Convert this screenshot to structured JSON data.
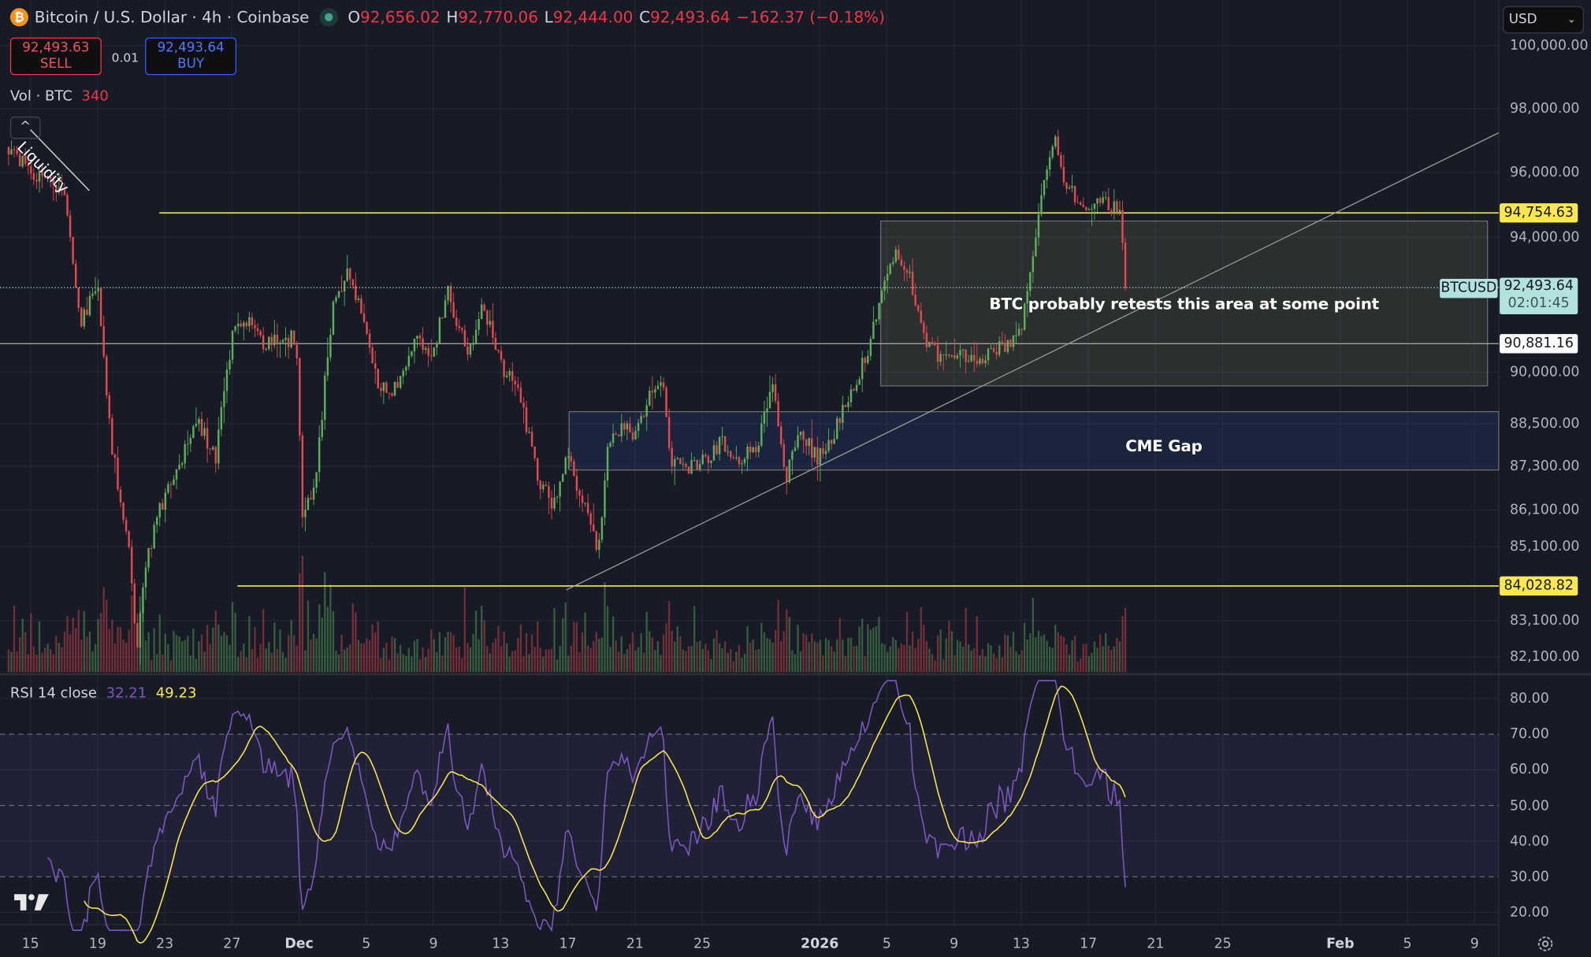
{
  "header": {
    "symbol": "Bitcoin / U.S. Dollar · 4h · Coinbase",
    "o_label": "O",
    "o": "92,656.02",
    "h_label": "H",
    "h": "92,770.06",
    "l_label": "L",
    "l": "92,444.00",
    "c_label": "C",
    "c": "92,493.64",
    "change": "−162.37 (−0.18%)",
    "coin_icon": "bitcoin-icon"
  },
  "trade": {
    "sell_price": "92,493.63",
    "sell_label": "SELL",
    "qty": "0.01",
    "buy_price": "92,493.64",
    "buy_label": "BUY"
  },
  "volume": {
    "label": "Vol · BTC",
    "value": "340"
  },
  "currency": {
    "value": "USD"
  },
  "price_axis": {
    "ticks": [
      "100,000.00",
      "98,000.00",
      "96,000.00",
      "94,000.00",
      "90,000.00",
      "88,500.00",
      "87,300.00",
      "86,100.00",
      "85,100.00",
      "83,100.00",
      "82,100.00"
    ]
  },
  "price_labels": {
    "resistance": "94,754.63",
    "current_symbol": "BTCUSD",
    "current_price": "92,493.64",
    "countdown": "02:01:45",
    "midline": "90,881.16",
    "support": "84,028.82"
  },
  "drawings": {
    "liquidity": "Liquidity",
    "retest_note": "BTC probably retests this area at some point",
    "cme_gap": "CME Gap"
  },
  "rsi": {
    "label": "RSI 14 close",
    "value": "32.21",
    "ma_value": "49.23",
    "ticks": [
      "80.00",
      "70.00",
      "60.00",
      "50.00",
      "40.00",
      "30.00",
      "20.00"
    ]
  },
  "time_axis": [
    "15",
    "19",
    "23",
    "27",
    "Dec",
    "5",
    "9",
    "13",
    "17",
    "21",
    "25",
    "2026",
    "5",
    "9",
    "13",
    "17",
    "21",
    "25",
    "Feb",
    "5",
    "9"
  ],
  "colors": {
    "up": "#5fae5a",
    "down": "#e5484f",
    "rsi": "#7e57c2",
    "rsi_ma": "#fce84c",
    "background": "#171b26",
    "hline": "#fce84c"
  },
  "chart_data": {
    "type": "candlestick",
    "timeframe": "4h",
    "x_origin": "Nov 15",
    "x_unit": "days since x_origin",
    "key_closes": [
      [
        -1.3,
        96800
      ],
      [
        0,
        96000
      ],
      [
        2,
        95500
      ],
      [
        3,
        91500
      ],
      [
        4,
        92500
      ],
      [
        4.8,
        88000
      ],
      [
        6,
        84500
      ],
      [
        6.3,
        82200
      ],
      [
        7,
        85000
      ],
      [
        8,
        86500
      ],
      [
        9,
        87500
      ],
      [
        10,
        88500
      ],
      [
        11,
        87500
      ],
      [
        12,
        91000
      ],
      [
        13,
        91500
      ],
      [
        14,
        90800
      ],
      [
        15.8,
        91000
      ],
      [
        16.2,
        86000
      ],
      [
        17,
        87000
      ],
      [
        18,
        92000
      ],
      [
        19,
        93000
      ],
      [
        20,
        91000
      ],
      [
        20.8,
        89500
      ],
      [
        21.8,
        89500
      ],
      [
        23,
        91000
      ],
      [
        24,
        90500
      ],
      [
        24.8,
        92500
      ],
      [
        26,
        90500
      ],
      [
        27,
        92000
      ],
      [
        28,
        90200
      ],
      [
        29,
        89500
      ],
      [
        30.2,
        87000
      ],
      [
        31.1,
        86200
      ],
      [
        32,
        87500
      ],
      [
        33.2,
        86000
      ],
      [
        33.8,
        84800
      ],
      [
        34.4,
        88000
      ],
      [
        35.3,
        88300
      ],
      [
        36,
        88200
      ],
      [
        37.1,
        89500
      ],
      [
        37.6,
        89800
      ],
      [
        38.1,
        87500
      ],
      [
        39.3,
        87300
      ],
      [
        40.1,
        87500
      ],
      [
        41.1,
        88000
      ],
      [
        42.3,
        87500
      ],
      [
        43.2,
        87800
      ],
      [
        44.2,
        89500
      ],
      [
        45,
        87000
      ],
      [
        45.9,
        88300
      ],
      [
        46.8,
        87500
      ],
      [
        47.7,
        88000
      ],
      [
        48.9,
        89500
      ],
      [
        49.8,
        90500
      ],
      [
        50.6,
        92000
      ],
      [
        51.4,
        93500
      ],
      [
        52.3,
        93000
      ],
      [
        53.2,
        91000
      ],
      [
        54.1,
        90500
      ],
      [
        55.1,
        90500
      ],
      [
        56.2,
        90300
      ],
      [
        57.1,
        90500
      ],
      [
        58.1,
        90800
      ],
      [
        59.1,
        91500
      ],
      [
        59.8,
        94000
      ],
      [
        60.4,
        96000
      ],
      [
        61,
        97000
      ],
      [
        61.6,
        95500
      ],
      [
        62.5,
        95200
      ],
      [
        63.1,
        95000
      ],
      [
        64,
        95000
      ],
      [
        64.9,
        95000
      ],
      [
        65.2,
        92493.64
      ]
    ],
    "horizontal_lines": [
      94754.63,
      90881.16,
      84028.82
    ],
    "zones": [
      {
        "name": "retest area",
        "from": 89600,
        "to": 94500
      },
      {
        "name": "CME Gap",
        "from": 87200,
        "to": 88850
      }
    ],
    "y_range": [
      81800,
      100500
    ],
    "rsi_range": [
      20,
      80
    ],
    "rsi_bands": [
      30,
      50,
      70
    ]
  }
}
